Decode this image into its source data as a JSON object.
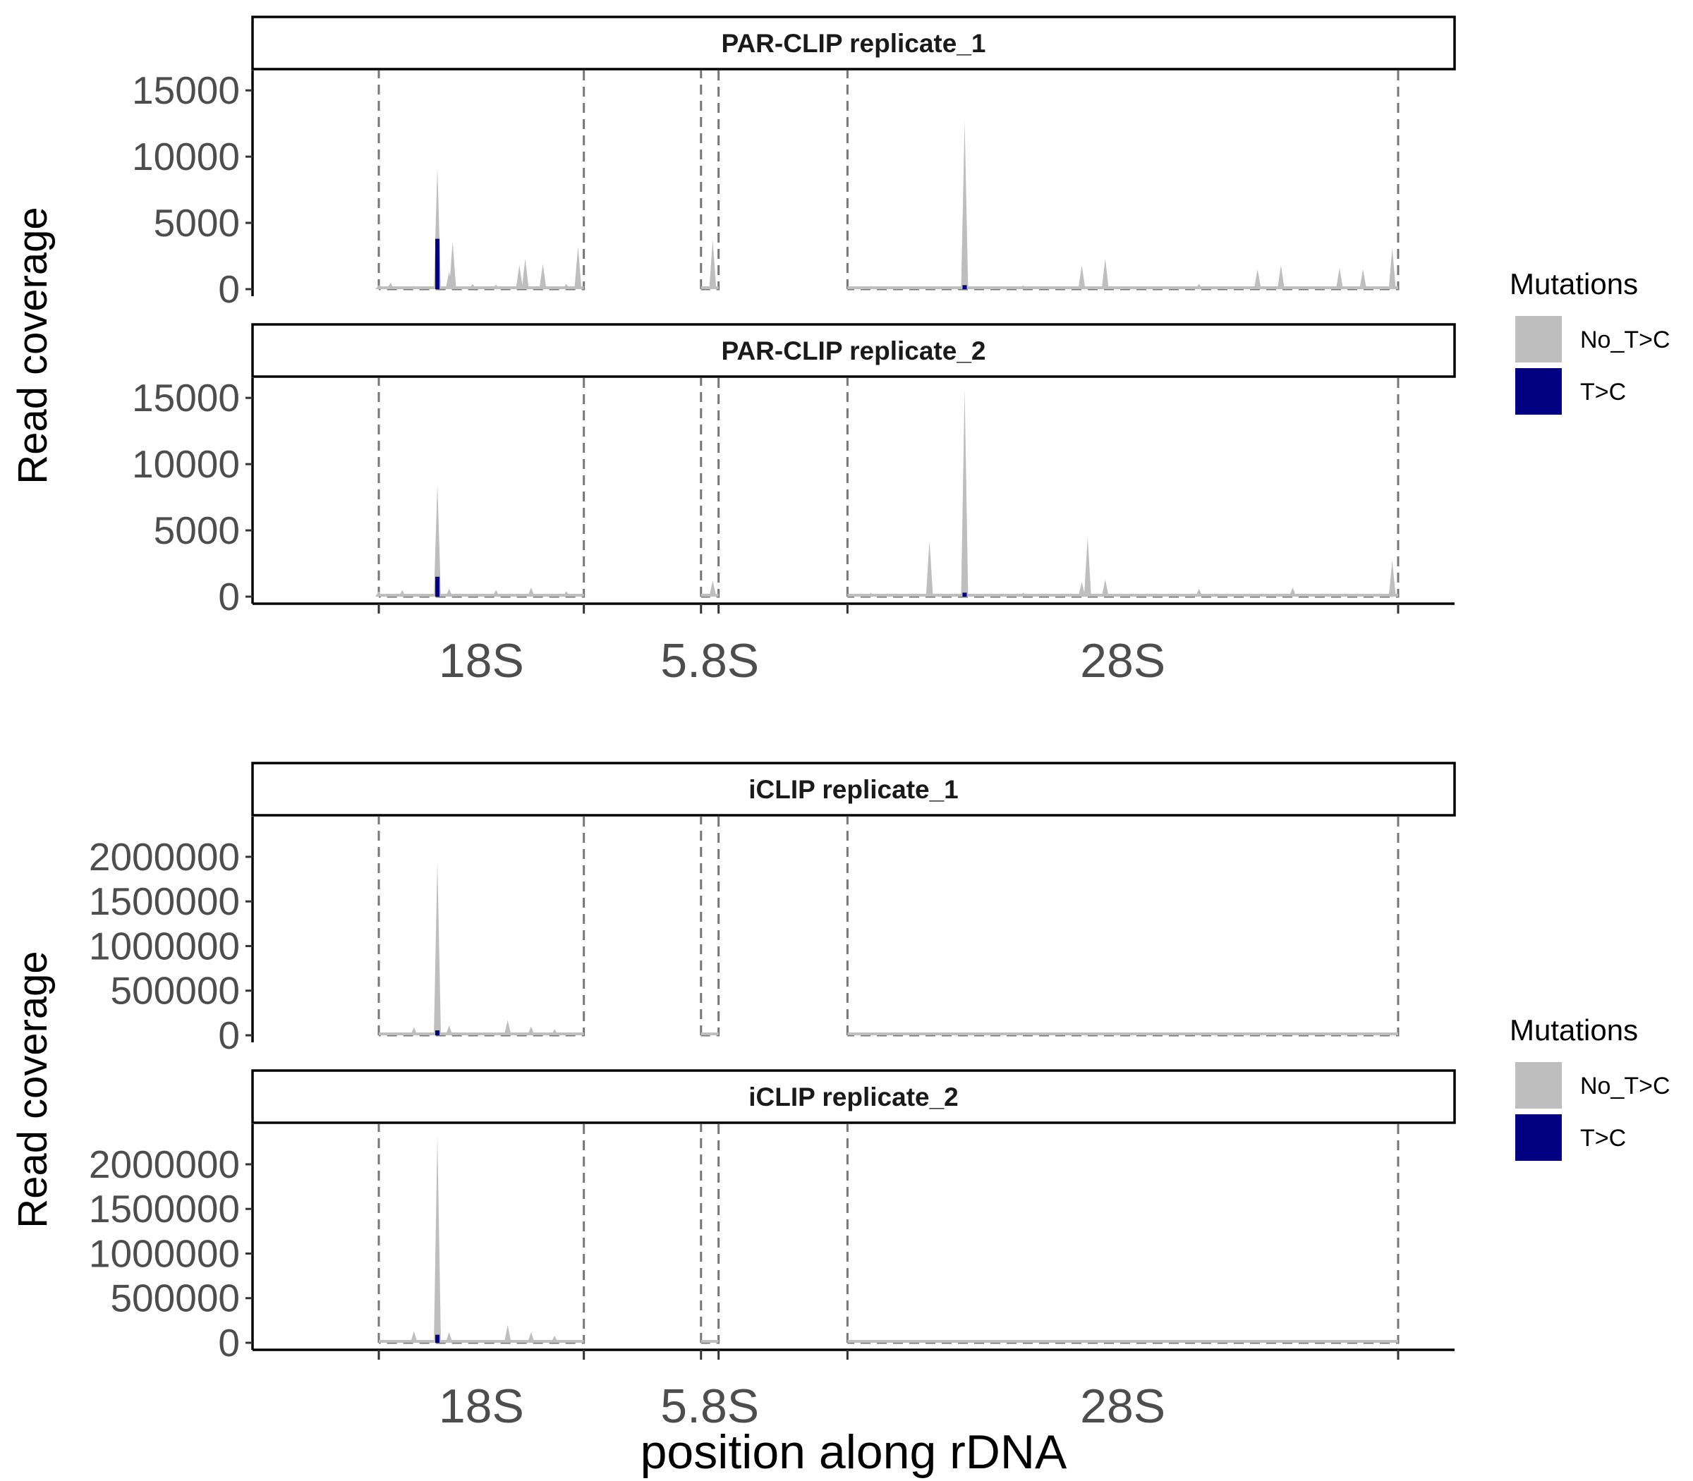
{
  "chart_data": [
    {
      "type": "area",
      "xlabel": "position along rDNA",
      "ylabel": "Read coverage",
      "x_categories": [
        "18S",
        "5.8S",
        "28S"
      ],
      "regions": [
        {
          "name": "18S",
          "start": 0.0,
          "end": 0.175
        },
        {
          "name": "5.8S",
          "start": 0.275,
          "end": 0.29
        },
        {
          "name": "28S",
          "start": 0.4,
          "end": 0.87
        }
      ],
      "legend": {
        "title": "Mutations",
        "entries": [
          {
            "label": "No_T>C",
            "color": "#bebebe"
          },
          {
            "label": "T>C",
            "color": "#000080"
          }
        ]
      },
      "ylim": [
        0,
        16500
      ],
      "yticks": [
        "0",
        "5000",
        "10000",
        "15000"
      ],
      "ytick_values": [
        0,
        5000,
        10000,
        15000
      ],
      "panels": [
        {
          "title": "PAR-CLIP replicate_1",
          "no_tc": [
            [
              0.0,
              300
            ],
            [
              0.01,
              500
            ],
            [
              0.02,
              200
            ],
            [
              0.03,
              250
            ],
            [
              0.05,
              9200
            ],
            [
              0.06,
              1300
            ],
            [
              0.063,
              3600
            ],
            [
              0.08,
              400
            ],
            [
              0.1,
              350
            ],
            [
              0.12,
              1800
            ],
            [
              0.125,
              2300
            ],
            [
              0.14,
              1900
            ],
            [
              0.16,
              400
            ],
            [
              0.17,
              3200
            ],
            [
              0.285,
              3700
            ],
            [
              0.42,
              250
            ],
            [
              0.45,
              200
            ],
            [
              0.5,
              12700
            ],
            [
              0.55,
              300
            ],
            [
              0.6,
              1800
            ],
            [
              0.62,
              2300
            ],
            [
              0.7,
              400
            ],
            [
              0.75,
              1500
            ],
            [
              0.77,
              1800
            ],
            [
              0.82,
              1600
            ],
            [
              0.84,
              1500
            ],
            [
              0.865,
              3100
            ]
          ],
          "tc": [
            [
              0.05,
              3800
            ],
            [
              0.5,
              300
            ]
          ]
        },
        {
          "title": "PAR-CLIP replicate_2",
          "no_tc": [
            [
              0.0,
              400
            ],
            [
              0.02,
              500
            ],
            [
              0.05,
              8500
            ],
            [
              0.06,
              600
            ],
            [
              0.1,
              500
            ],
            [
              0.13,
              700
            ],
            [
              0.16,
              400
            ],
            [
              0.285,
              1200
            ],
            [
              0.42,
              300
            ],
            [
              0.47,
              4200
            ],
            [
              0.5,
              15700
            ],
            [
              0.55,
              300
            ],
            [
              0.6,
              1100
            ],
            [
              0.605,
              4500
            ],
            [
              0.62,
              1300
            ],
            [
              0.7,
              600
            ],
            [
              0.78,
              700
            ],
            [
              0.865,
              2700
            ]
          ],
          "tc": [
            [
              0.05,
              1500
            ],
            [
              0.5,
              300
            ]
          ]
        }
      ]
    },
    {
      "type": "area",
      "xlabel": "position along rDNA",
      "ylabel": "Read coverage",
      "x_categories": [
        "18S",
        "5.8S",
        "28S"
      ],
      "regions": [
        {
          "name": "18S",
          "start": 0.0,
          "end": 0.175
        },
        {
          "name": "5.8S",
          "start": 0.275,
          "end": 0.29
        },
        {
          "name": "28S",
          "start": 0.4,
          "end": 0.87
        }
      ],
      "legend": {
        "title": "Mutations",
        "entries": [
          {
            "label": "No_T>C",
            "color": "#bebebe"
          },
          {
            "label": "T>C",
            "color": "#000080"
          }
        ]
      },
      "ylim": [
        0,
        2450000
      ],
      "yticks": [
        "0",
        "500000",
        "1000000",
        "1500000",
        "2000000"
      ],
      "ytick_values": [
        0,
        500000,
        1000000,
        1500000,
        2000000
      ],
      "panels": [
        {
          "title": "iCLIP replicate_1",
          "no_tc": [
            [
              0.03,
              90000
            ],
            [
              0.05,
              1950000
            ],
            [
              0.06,
              110000
            ],
            [
              0.11,
              170000
            ],
            [
              0.13,
              100000
            ],
            [
              0.15,
              70000
            ],
            [
              0.865,
              20000
            ]
          ],
          "tc": [
            [
              0.05,
              55000
            ]
          ]
        },
        {
          "title": "iCLIP replicate_2",
          "no_tc": [
            [
              0.03,
              130000
            ],
            [
              0.05,
              2320000
            ],
            [
              0.06,
              120000
            ],
            [
              0.11,
              200000
            ],
            [
              0.13,
              120000
            ],
            [
              0.15,
              80000
            ],
            [
              0.865,
              30000
            ]
          ],
          "tc": [
            [
              0.05,
              90000
            ]
          ]
        }
      ]
    }
  ]
}
